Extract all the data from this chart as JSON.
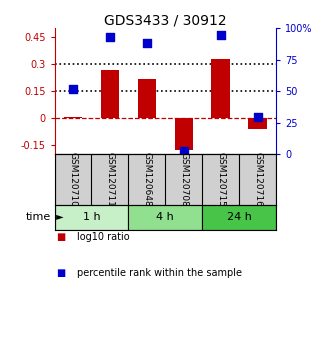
{
  "title": "GDS3433 / 30912",
  "samples": [
    "GSM120710",
    "GSM120711",
    "GSM120648",
    "GSM120708",
    "GSM120715",
    "GSM120716"
  ],
  "log10_ratio": [
    0.005,
    0.27,
    0.22,
    -0.175,
    0.33,
    -0.06
  ],
  "percentile_rank": [
    52,
    93,
    88,
    3,
    95,
    30
  ],
  "groups": [
    {
      "label": "1 h",
      "indices": [
        0,
        1
      ],
      "color": "#c8f0c8"
    },
    {
      "label": "4 h",
      "indices": [
        2,
        3
      ],
      "color": "#90e090"
    },
    {
      "label": "24 h",
      "indices": [
        4,
        5
      ],
      "color": "#48c448"
    }
  ],
  "bar_color": "#c00000",
  "dot_color": "#0000cc",
  "ylim_left": [
    -0.2,
    0.5
  ],
  "ylim_right": [
    0,
    100
  ],
  "yticks_left": [
    -0.15,
    0.0,
    0.15,
    0.3,
    0.45
  ],
  "yticks_right": [
    0,
    25,
    50,
    75,
    100
  ],
  "hlines": [
    0.0,
    0.15,
    0.3
  ],
  "hline_styles": [
    "dashed",
    "dotted",
    "dotted"
  ],
  "hline_colors": [
    "#c00000",
    "#000000",
    "#000000"
  ],
  "bar_width": 0.5,
  "dot_size": 40,
  "left_axis_color": "#c00000",
  "right_axis_color": "#0000cc",
  "legend_items": [
    {
      "color": "#c00000",
      "label": "log10 ratio"
    },
    {
      "color": "#0000cc",
      "label": "percentile rank within the sample"
    }
  ],
  "sample_box_color": "#d0d0d0",
  "time_label": "time",
  "background_color": "#ffffff"
}
